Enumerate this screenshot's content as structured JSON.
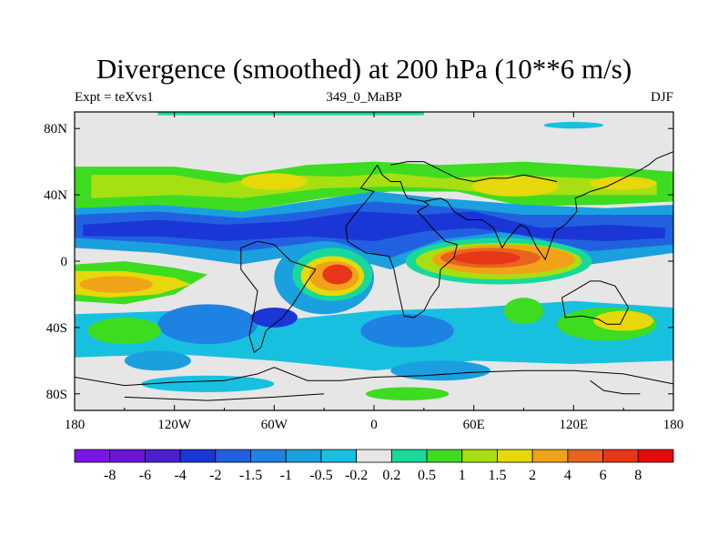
{
  "title": "Divergence (smoothed) at 200 hPa (10**6 m/s)",
  "left_string": "Expt = teXvs1",
  "center_string": "349_0_MaBP",
  "right_string": "DJF",
  "colors": {
    "background": "#e6e6e6",
    "coast": "#000000"
  },
  "chart_data": {
    "type": "heatmap",
    "title": "Divergence (smoothed) at 200 hPa (10**6 m/s)",
    "units": "10**6 m/s",
    "level": "200 hPa",
    "season": "DJF",
    "x_ticks": [
      "180",
      "120W",
      "60W",
      "0",
      "60E",
      "120E",
      "180"
    ],
    "y_ticks": [
      "80N",
      "40N",
      "0",
      "40S",
      "80S"
    ],
    "x_range": [
      -180,
      180
    ],
    "y_range": [
      -90,
      90
    ],
    "colorbar": {
      "colors": [
        "#7b14e6",
        "#6a14d6",
        "#4b1fd0",
        "#1b36d6",
        "#2161e0",
        "#1e82e3",
        "#1aa0de",
        "#18c0e0",
        "#e6e6e6",
        "#18d99a",
        "#3ddc20",
        "#a6e012",
        "#e6d80b",
        "#f0a318",
        "#e8641e",
        "#e83618",
        "#e60a0a"
      ],
      "labels": [
        "-8",
        "-6",
        "-4",
        "-2",
        "-1.5",
        "-1",
        "-0.5",
        "-0.2",
        "0.2",
        "0.5",
        "1",
        "1.5",
        "2",
        "4",
        "6",
        "8"
      ]
    },
    "features": [
      {
        "name": "tropical-high-divergence-africa",
        "lon": -25,
        "lat": -10,
        "level": 6
      },
      {
        "name": "tropical-high-divergence-indian-ocean",
        "lon": 70,
        "lat": 2,
        "level": 6
      },
      {
        "name": "subtropical-convergence-belt",
        "lon": -90,
        "lat": 12,
        "level": -4
      },
      {
        "name": "subtropical-convergence-asia",
        "lon": 50,
        "lat": 22,
        "level": -4
      },
      {
        "name": "south-pacific-divergence",
        "lon": -150,
        "lat": -15,
        "level": 2
      },
      {
        "name": "northern-midlatitude-divergence",
        "lon": 90,
        "lat": 40,
        "level": 1.5
      }
    ]
  }
}
